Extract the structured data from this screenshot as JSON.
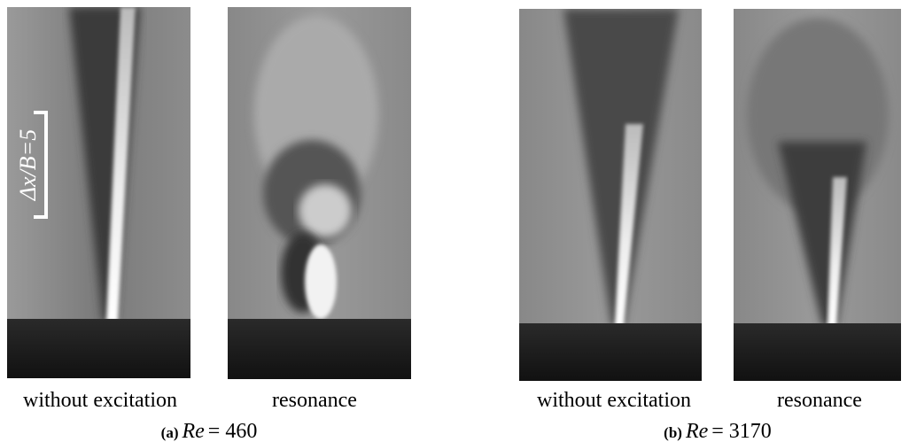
{
  "scale_bar": "Δx/B=5",
  "panels": [
    {
      "label": "(a)",
      "variable": "Re",
      "value_text": "= 460",
      "images": [
        {
          "caption": "without excitation"
        },
        {
          "caption": "resonance"
        }
      ]
    },
    {
      "label": "(b)",
      "variable": "Re",
      "value_text": "= 3170",
      "images": [
        {
          "caption": "without excitation"
        },
        {
          "caption": "resonance"
        }
      ]
    }
  ]
}
